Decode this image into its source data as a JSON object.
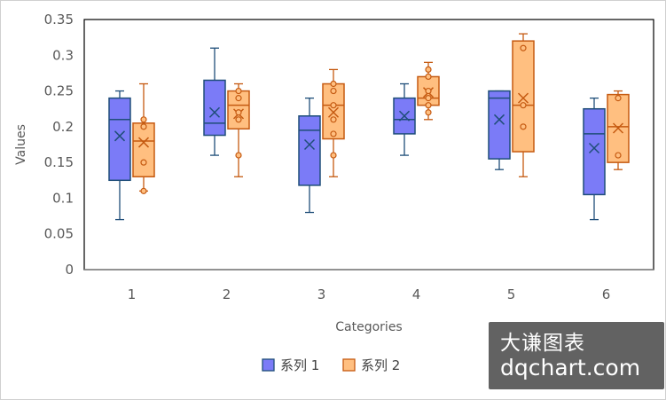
{
  "chart_data": {
    "type": "boxplot",
    "xlabel": "Categories",
    "ylabel": "Values",
    "ylim": [
      0,
      0.35
    ],
    "y_ticks": [
      "0",
      "0.05",
      "0.1",
      "0.15",
      "0.2",
      "0.25",
      "0.3",
      "0.35"
    ],
    "categories": [
      "1",
      "2",
      "3",
      "4",
      "5",
      "6"
    ],
    "grid": false,
    "legend_position": "bottom",
    "series": [
      {
        "name": "系列 1",
        "color": "#7b7bf7",
        "edge_color": "#1f4e79",
        "boxes": [
          {
            "min": 0.07,
            "q1": 0.125,
            "median": 0.21,
            "q3": 0.24,
            "max": 0.25,
            "mean": 0.187,
            "points": []
          },
          {
            "min": 0.16,
            "q1": 0.188,
            "median": 0.205,
            "q3": 0.265,
            "max": 0.31,
            "mean": 0.22,
            "points": []
          },
          {
            "min": 0.08,
            "q1": 0.118,
            "median": 0.195,
            "q3": 0.215,
            "max": 0.24,
            "mean": 0.175,
            "points": []
          },
          {
            "min": 0.16,
            "q1": 0.19,
            "median": 0.21,
            "q3": 0.24,
            "max": 0.26,
            "mean": 0.215,
            "points": []
          },
          {
            "min": 0.14,
            "q1": 0.155,
            "median": 0.24,
            "q3": 0.25,
            "max": 0.25,
            "mean": 0.21,
            "points": []
          },
          {
            "min": 0.07,
            "q1": 0.105,
            "median": 0.19,
            "q3": 0.225,
            "max": 0.24,
            "mean": 0.17,
            "points": []
          }
        ]
      },
      {
        "name": "系列 2",
        "color": "#ffbf80",
        "edge_color": "#c55a11",
        "boxes": [
          {
            "min": 0.11,
            "q1": 0.13,
            "median": 0.18,
            "q3": 0.205,
            "max": 0.26,
            "mean": 0.178,
            "points": [
              0.11,
              0.15,
              0.2,
              0.21
            ]
          },
          {
            "min": 0.13,
            "q1": 0.197,
            "median": 0.23,
            "q3": 0.25,
            "max": 0.26,
            "mean": 0.218,
            "points": [
              0.16,
              0.21,
              0.22,
              0.24,
              0.25
            ]
          },
          {
            "min": 0.13,
            "q1": 0.183,
            "median": 0.23,
            "q3": 0.26,
            "max": 0.28,
            "mean": 0.22,
            "points": [
              0.16,
              0.19,
              0.21,
              0.23,
              0.25,
              0.26
            ]
          },
          {
            "min": 0.21,
            "q1": 0.23,
            "median": 0.24,
            "q3": 0.27,
            "max": 0.29,
            "mean": 0.248,
            "points": [
              0.22,
              0.23,
              0.24,
              0.25,
              0.27,
              0.28
            ]
          },
          {
            "min": 0.13,
            "q1": 0.165,
            "median": 0.23,
            "q3": 0.32,
            "max": 0.33,
            "mean": 0.24,
            "points": [
              0.2,
              0.23,
              0.31
            ]
          },
          {
            "min": 0.14,
            "q1": 0.15,
            "median": 0.2,
            "q3": 0.245,
            "max": 0.25,
            "mean": 0.198,
            "points": [
              0.16,
              0.24
            ]
          }
        ]
      }
    ]
  },
  "watermark": {
    "line1": "大谦图表",
    "line2": "dqchart.com"
  }
}
